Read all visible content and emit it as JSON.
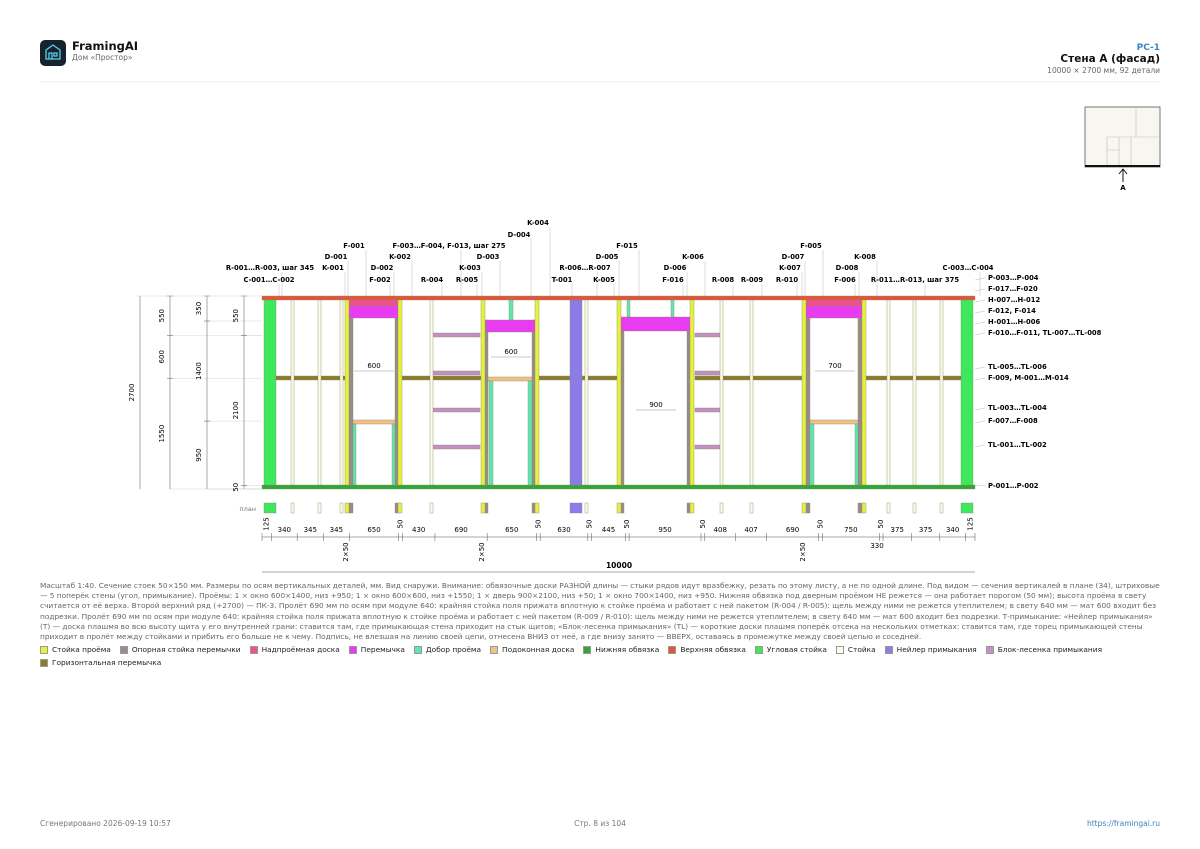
{
  "header": {
    "app": "FramingAI",
    "project": "Дом «Простор»",
    "sheet": "PC-1",
    "title": "Стена А (фасад)",
    "subtitle": "10000 × 2700 мм, 92 детали"
  },
  "key_plan": {
    "label": "A"
  },
  "drawing": {
    "top_labels": [
      "K-004",
      "D-004",
      "F-001",
      "F-003…F-004, F-013, шаг 275",
      "F-015",
      "F-005",
      "D-001",
      "K-002",
      "D-003",
      "D-005",
      "K-006",
      "D-007",
      "K-008",
      "R-001…R-003, шаг 345",
      "K-001",
      "D-002",
      "K-003",
      "R-006…R-007",
      "D-006",
      "K-007",
      "D-008",
      "C-003…C-004",
      "C-001…C-002",
      "F-002",
      "R-004",
      "R-005",
      "T-001",
      "K-005",
      "F-016",
      "R-008",
      "R-009",
      "R-010",
      "F-006",
      "R-011…R-013, шаг 375"
    ],
    "right_labels": [
      "P-003…P-004",
      "F-017…F-020",
      "H-007…H-012",
      "F-012, F-014",
      "H-001…H-006",
      "F-010…F-011, TL-007…TL-008",
      "TL-005…TL-006",
      "F-009, M-001…M-014",
      "TL-003…TL-004",
      "F-007…F-008",
      "TL-001…TL-002",
      "P-001…P-002"
    ],
    "opening_widths": [
      600,
      600,
      900,
      700
    ],
    "left_dims": [
      [
        550,
        600,
        1550
      ],
      [
        350,
        1400,
        950
      ],
      [
        550,
        2100,
        50
      ]
    ],
    "total_height": 2700,
    "plan_label": "план",
    "plan_dims": [
      125,
      340,
      345,
      345,
      650,
      50,
      430,
      690,
      650,
      50,
      630,
      50,
      445,
      50,
      950,
      50,
      408,
      407,
      690,
      50,
      750,
      50,
      375,
      375,
      340,
      125
    ],
    "pair_labels": [
      "2×50",
      "2×50",
      "2×50"
    ],
    "extra_dim": 330,
    "total_length": 10000
  },
  "description": "Масштаб 1:40. Сечение стоек 50×150 мм. Размеры по осям вертикальных деталей, мм. Вид снаружи. Внимание: обвязочные доски РАЗНОЙ длины — стыки рядов идут вразбежку, резать по этому листу, а не по одной длине. Под видом — сечения вертикалей в плане (34), штриховые — 5 поперёк стены (угол, примыкание). Проёмы: 1 × окно 600×1400, низ +950; 1 × окно 600×600, низ +1550; 1 × дверь 900×2100, низ +50; 1 × окно 700×1400, низ +950. Нижняя обвязка под дверным проёмом НЕ режется — она работает порогом (50 мм); высота проёма в свету считается от её верха. Второй верхний ряд (+2700) — ПК-3. Пролёт 690 мм по осям при модуле 640: крайняя стойка поля прижата вплотную к стойке проёма и работает с ней пакетом (R-004 / R-005): щель между ними не режется утеплителем; в свету 640 мм — мат 600 входит без подрезки. Пролёт 690 мм по осям при модуле 640: крайняя стойка поля прижата вплотную к стойке проёма и работает с ней пакетом (R-009 / R-010): щель между ними не режется утеплителем; в свету 640 мм — мат 600 входит без подрезки. Т-примыкание: «Нейлер примыкания» (T) — доска плашмя во всю высоту щита у его внутренней грани: ставится там, где примыкающая стена приходит на стык щитов; «Блок-лесенка примыкания» (TL) — короткие доски плашмя поперёк отсека на нескольких отметках: ставится там, где торец примыкающей стены приходит в пролёт между стойками и прибить его больше не к чему. Подпись, не влезшая на линию своей цепи, отнесена ВНИЗ от неё, а где внизу занято — ВВЕРХ, оставаясь в промежутке между своей цепью и соседней.",
  "legend": [
    {
      "label": "Стойка проёма",
      "color": "#e4f23c"
    },
    {
      "label": "Опорная стойка перемычки",
      "color": "#9a8c8c"
    },
    {
      "label": "Надпроёмная доска",
      "color": "#f0508c"
    },
    {
      "label": "Перемычка",
      "color": "#e83cf0"
    },
    {
      "label": "Добор проёма",
      "color": "#5ee8b0"
    },
    {
      "label": "Подоконная доска",
      "color": "#f2c084"
    },
    {
      "label": "Нижняя обвязка",
      "color": "#2fa836"
    },
    {
      "label": "Верхняя обвязка",
      "color": "#e2553a"
    },
    {
      "label": "Угловая стойка",
      "color": "#3ee85c"
    },
    {
      "label": "Стойка",
      "color": "#fbfbe6"
    },
    {
      "label": "Нейлер примыкания",
      "color": "#8c7ce8"
    },
    {
      "label": "Блок-лесенка примыкания",
      "color": "#c190c4"
    },
    {
      "label": "Горизонтальная перемычка",
      "color": "#8a7c2c"
    }
  ],
  "footer": {
    "generated": "Сгенерировано 2026-09-19 10:57",
    "page": "Стр. 8 из 104",
    "url": "https://framingai.ru"
  }
}
